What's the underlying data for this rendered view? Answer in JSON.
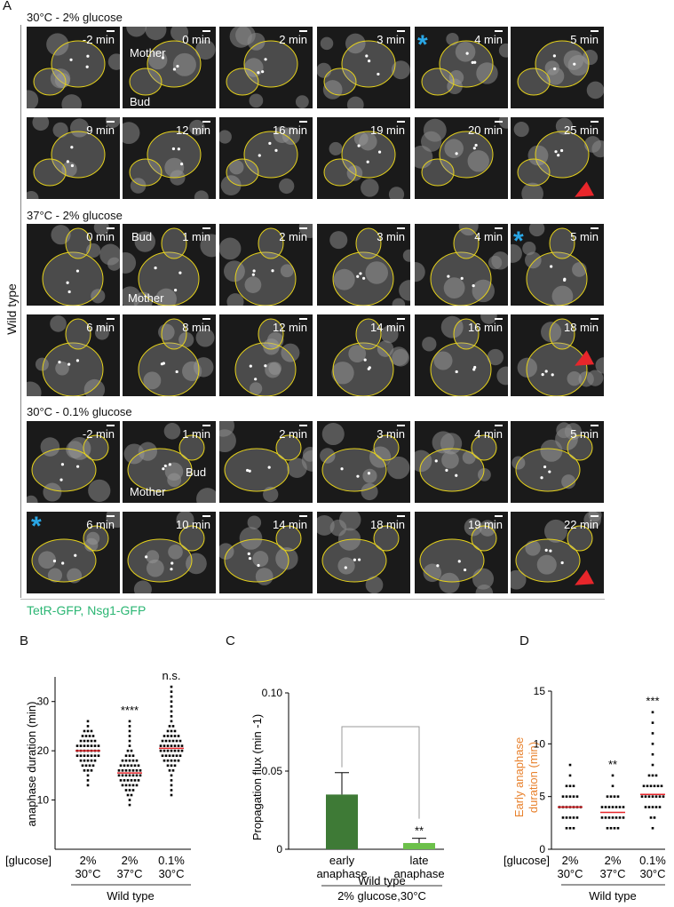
{
  "panel_a": {
    "letter": "A",
    "side_label": "Wild type",
    "legend": "TetR-GFP, Nsg1-GFP",
    "legend_color": "#2bb673",
    "star_color": "#2aa7e6",
    "arrow_color": "#e8262b",
    "outline_color": "#e6d21a",
    "conditions": [
      "30°C - 2% glucose",
      "37°C - 2% glucose",
      "30°C - 0.1% glucose"
    ],
    "rows": [
      [
        "-2 min",
        "0 min",
        "2 min",
        "3 min",
        "4 min",
        "5 min"
      ],
      [
        "9 min",
        "12 min",
        "16 min",
        "19 min",
        "20 min",
        "25 min"
      ],
      [
        "0 min",
        "1 min",
        "2 min",
        "3 min",
        "4 min",
        "5 min"
      ],
      [
        "6 min",
        "8 min",
        "12 min",
        "14 min",
        "16 min",
        "18 min"
      ],
      [
        "-2 min",
        "1 min",
        "2 min",
        "3 min",
        "4 min",
        "5 min"
      ],
      [
        "6 min",
        "10 min",
        "14 min",
        "18 min",
        "19 min",
        "22 min"
      ]
    ],
    "annotations": {
      "mother": "Mother",
      "bud": "Bud"
    }
  },
  "panel_b": {
    "letter": "B",
    "x_prefix": "[glucose]",
    "group_label": "Wild type",
    "chart_data": {
      "type": "scatter",
      "ylabel": "anaphase duration (min)",
      "ylim": [
        0,
        35
      ],
      "yticks": [
        10,
        20,
        30
      ],
      "categories": [
        "2% 30°C",
        "2% 37°C",
        "0.1% 30°C"
      ],
      "category_lines": [
        [
          "2%",
          "30°C"
        ],
        [
          "2%",
          "37°C"
        ],
        [
          "0.1%",
          "30°C"
        ]
      ],
      "means": [
        20,
        15.5,
        20.5
      ],
      "ranges": [
        [
          13,
          26
        ],
        [
          9,
          26
        ],
        [
          11,
          33
        ]
      ],
      "significance": [
        "",
        "****",
        "n.s."
      ]
    }
  },
  "panel_c": {
    "letter": "C",
    "group_label": "Wild type",
    "sub_label": "2% glucose,30°C",
    "chart_data": {
      "type": "bar",
      "ylabel": "Propagation flux (min -1)",
      "ylim": [
        0,
        0.1
      ],
      "yticks": [
        "0",
        "0.05",
        "0.10"
      ],
      "categories": [
        "early anaphase",
        "late anaphase"
      ],
      "category_lines": [
        [
          "early",
          "anaphase"
        ],
        [
          "late",
          "anaphase"
        ]
      ],
      "values": [
        0.035,
        0.004
      ],
      "errors": [
        0.014,
        0.003
      ],
      "colors": [
        "#3e7a36",
        "#6cc04a"
      ],
      "significance": "**"
    }
  },
  "panel_d": {
    "letter": "D",
    "x_prefix": "[glucose]",
    "group_label": "Wild type",
    "chart_data": {
      "type": "scatter",
      "ylabel_lines": [
        "Early anaphase",
        "duration (min)"
      ],
      "ylabel_color": "#e8822e",
      "ylim": [
        0,
        15
      ],
      "yticks": [
        0,
        5,
        10,
        15
      ],
      "categories": [
        "2% 30°C",
        "2% 37°C",
        "0.1% 30°C"
      ],
      "category_lines": [
        [
          "2%",
          "30°C"
        ],
        [
          "2%",
          "37°C"
        ],
        [
          "0.1%",
          "30°C"
        ]
      ],
      "means": [
        4,
        3.5,
        5.2
      ],
      "ranges": [
        [
          2,
          8
        ],
        [
          2,
          7
        ],
        [
          2,
          13
        ]
      ],
      "significance": [
        "",
        "**",
        "***"
      ]
    }
  }
}
